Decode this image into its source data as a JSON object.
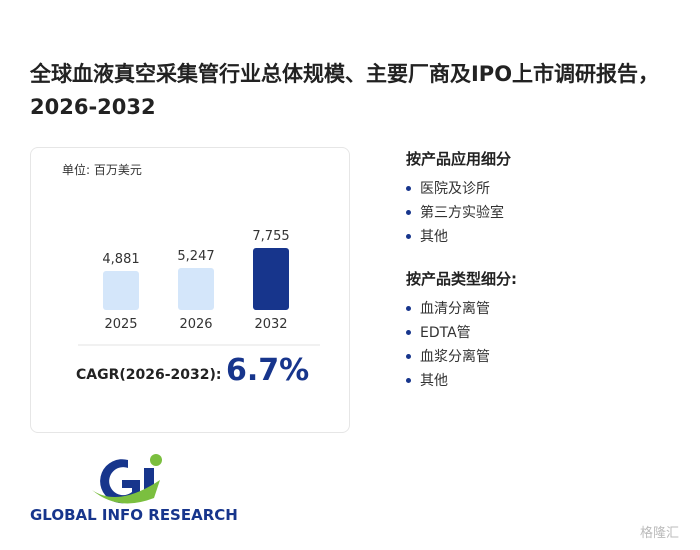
{
  "header": {
    "title": "全球血液真空采集管行业总体规模、主要厂商及IPO上市调研报告，2026-2032"
  },
  "chart_data": {
    "type": "bar",
    "unit_label": "单位: 百万美元",
    "categories": [
      "2025",
      "2026",
      "2032"
    ],
    "values": [
      4881,
      5247,
      7755
    ],
    "value_labels": [
      "4,881",
      "5,247",
      "7,755"
    ],
    "colors": [
      "#d4e6fa",
      "#d4e6fa",
      "#17358c"
    ]
  },
  "cagr": {
    "label": "CAGR(2026-2032):",
    "value": "6.7%"
  },
  "segments": [
    {
      "heading": "按产品应用细分",
      "items": [
        "医院及诊所",
        "第三方实验室",
        "其他"
      ]
    },
    {
      "heading": "按产品类型细分:",
      "items": [
        "血清分离管",
        "EDTA管",
        "血浆分离管",
        "其他"
      ]
    }
  ],
  "logo": {
    "text": "GLOBAL INFO RESEARCH"
  },
  "watermark": "格隆汇"
}
